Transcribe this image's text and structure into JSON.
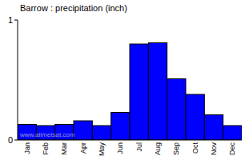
{
  "chart_data": {
    "type": "bar",
    "title": "Barrow : precipitation (inch)",
    "categories": [
      "Jan",
      "Feb",
      "Mar",
      "Apr",
      "May",
      "Jun",
      "Jul",
      "Aug",
      "Sep",
      "Oct",
      "Nov",
      "Dec"
    ],
    "values": [
      0.13,
      0.12,
      0.13,
      0.16,
      0.12,
      0.23,
      0.8,
      0.81,
      0.51,
      0.38,
      0.21,
      0.12
    ],
    "color": "#0000ff",
    "ylim": [
      0,
      1
    ],
    "yticks": [
      0,
      1
    ],
    "grid": false,
    "annotations": [
      "www.allmetsat.com"
    ]
  }
}
